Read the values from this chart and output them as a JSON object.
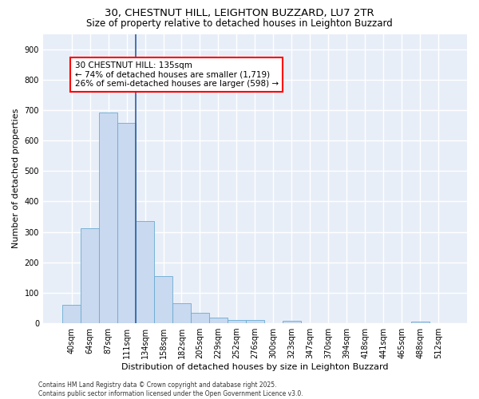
{
  "title1": "30, CHESTNUT HILL, LEIGHTON BUZZARD, LU7 2TR",
  "title2": "Size of property relative to detached houses in Leighton Buzzard",
  "xlabel": "Distribution of detached houses by size in Leighton Buzzard",
  "ylabel": "Number of detached properties",
  "categories": [
    "40sqm",
    "64sqm",
    "87sqm",
    "111sqm",
    "134sqm",
    "158sqm",
    "182sqm",
    "205sqm",
    "229sqm",
    "252sqm",
    "276sqm",
    "300sqm",
    "323sqm",
    "347sqm",
    "370sqm",
    "394sqm",
    "418sqm",
    "441sqm",
    "465sqm",
    "488sqm",
    "512sqm"
  ],
  "values": [
    60,
    312,
    693,
    658,
    335,
    155,
    65,
    35,
    18,
    11,
    11,
    0,
    9,
    0,
    0,
    0,
    0,
    0,
    0,
    6,
    0
  ],
  "bar_color": "#c8d9f0",
  "bar_edge_color": "#6aabd2",
  "vline_color": "#2e5fa3",
  "annotation_text": "30 CHESTNUT HILL: 135sqm\n← 74% of detached houses are smaller (1,719)\n26% of semi-detached houses are larger (598) →",
  "annotation_box_color": "white",
  "annotation_box_edge_color": "red",
  "ylim": [
    0,
    950
  ],
  "yticks": [
    0,
    100,
    200,
    300,
    400,
    500,
    600,
    700,
    800,
    900
  ],
  "background_color": "#e8eef8",
  "grid_color": "white",
  "footer": "Contains HM Land Registry data © Crown copyright and database right 2025.\nContains public sector information licensed under the Open Government Licence v3.0.",
  "title_fontsize": 9.5,
  "subtitle_fontsize": 8.5,
  "tick_fontsize": 7,
  "ylabel_fontsize": 8,
  "xlabel_fontsize": 8,
  "annotation_fontsize": 7.5,
  "footer_fontsize": 5.5
}
